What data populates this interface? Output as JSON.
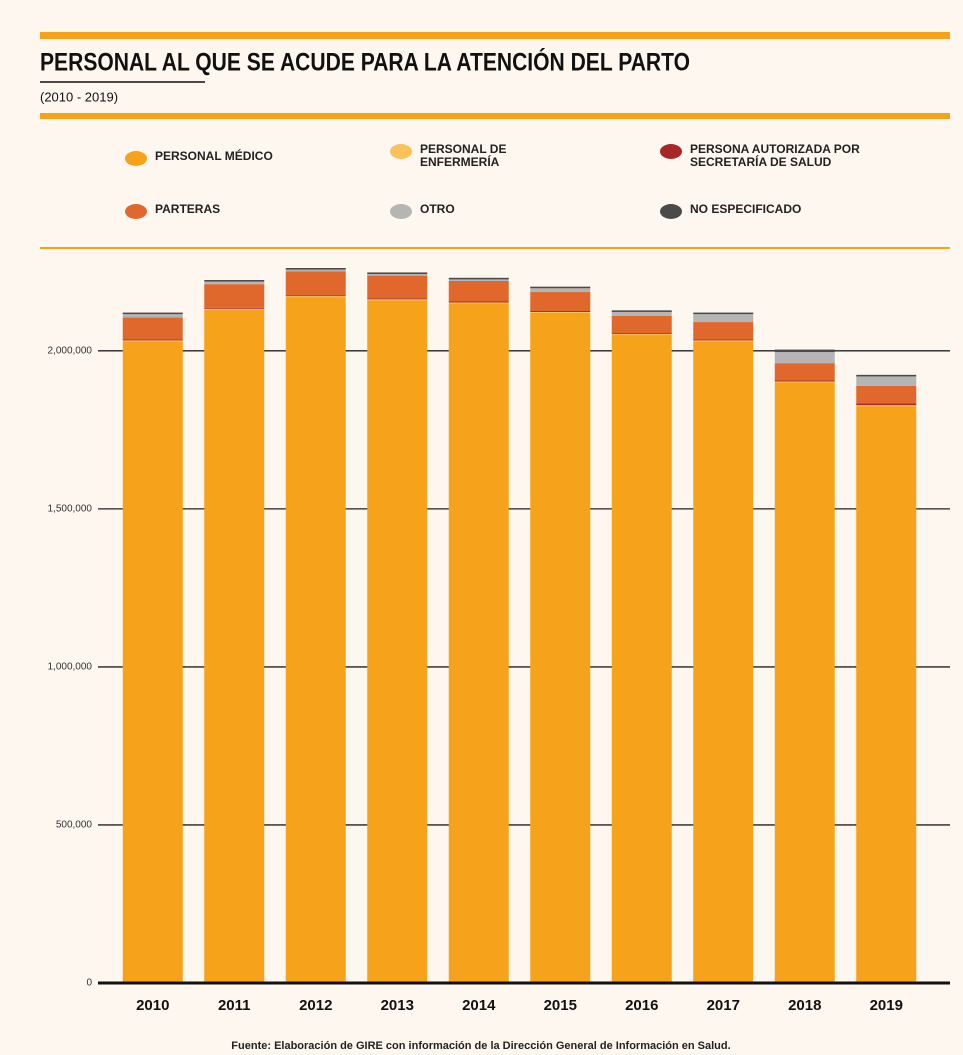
{
  "chart_data": {
    "type": "stacked_bar",
    "title": "PERSONAL AL QUE SE ACUDE PARA LA ATENCIÓN DEL PARTO",
    "subtitle": "(2010 - 2019)",
    "categories": [
      "2010",
      "2011",
      "2012",
      "2013",
      "2014",
      "2015",
      "2016",
      "2017",
      "2018",
      "2019"
    ],
    "series": [
      {
        "name": "PERSONAL MÉDICO",
        "color": "#f7a21b",
        "values": [
          2030000,
          2130000,
          2170000,
          2160000,
          2150000,
          2120000,
          2050000,
          2030000,
          1900000,
          1825000
        ]
      },
      {
        "name": "PERSONAL DE ENFERMERÍA",
        "color": "#fbc15a",
        "values": [
          3000,
          3000,
          3000,
          3000,
          3000,
          3000,
          3000,
          3000,
          3000,
          3000
        ]
      },
      {
        "name": "PERSONA AUTORIZADA POR SECRETARÍA DE SALUD",
        "color": "#a7262a",
        "values": [
          3000,
          3000,
          3000,
          3000,
          3000,
          3000,
          3000,
          3000,
          3000,
          6000
        ]
      },
      {
        "name": "PARTERAS",
        "color": "#e0682c",
        "values": [
          70000,
          75000,
          75000,
          72000,
          65000,
          60000,
          55000,
          55000,
          55000,
          55000
        ]
      },
      {
        "name": "OTRO",
        "color": "#b5b5b5",
        "values": [
          10000,
          8000,
          6000,
          5000,
          5000,
          12000,
          12000,
          25000,
          35000,
          30000
        ]
      },
      {
        "name": "NO ESPECIFICADO",
        "color": "#4a4a4a",
        "values": [
          5000,
          5000,
          5000,
          5000,
          5000,
          5000,
          5000,
          5000,
          8000,
          5000
        ]
      }
    ],
    "ylim": [
      0,
      2300000
    ],
    "yticks": [
      0,
      {
        "value": 500000,
        "label": "500,000"
      },
      {
        "value": 1000000,
        "label": "1,000,000"
      },
      {
        "value": 1500000,
        "label": "1,500,000"
      },
      {
        "value": 2000000,
        "label": "2,000,000"
      }
    ],
    "grid": true,
    "source": "Fuente: Elaboración de GIRE con información de la Dirección General de Información en Salud."
  }
}
